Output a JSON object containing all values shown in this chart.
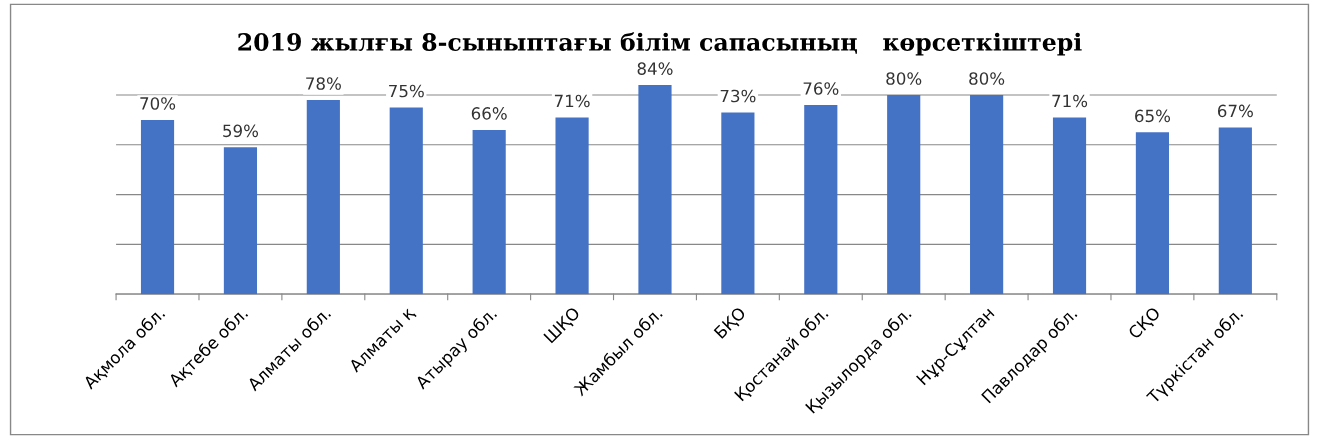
{
  "chart_data": {
    "type": "bar",
    "title": "2019 жылғы 8-сыныптағы білім сапасының   көрсеткіштері",
    "categories": [
      "Ақмола обл.",
      "Ақтебе обл.",
      "Алматы обл.",
      "Алматы қ",
      "Атырау обл.",
      "ШҚО",
      "Жамбыл обл.",
      "БҚО",
      "Қостанай обл.",
      "Қызылорда обл.",
      "Нұр-Сұлтан",
      "Павлодар обл.",
      "СҚО",
      "Түркістан обл."
    ],
    "series": [
      {
        "color": "#4472c4",
        "values": [
          70,
          59,
          78,
          75,
          66,
          71,
          84,
          73,
          76,
          80,
          80,
          71,
          65,
          67
        ],
        "value_labels": [
          "70%",
          "59%",
          "78%",
          "75%",
          "66%",
          "71%",
          "84%",
          "73%",
          "76%",
          "80%",
          "80%",
          "71%",
          "65%",
          "67%"
        ]
      }
    ],
    "grid": "y",
    "tick_labels": "x",
    "legend": false
  }
}
